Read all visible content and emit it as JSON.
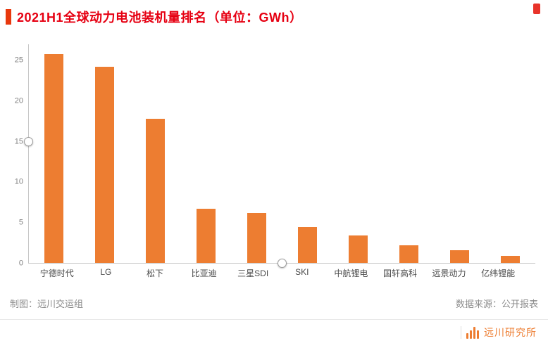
{
  "header": {
    "title": "2021H1全球动力电池装机量排名（单位：GWh）"
  },
  "chart_data": {
    "type": "bar",
    "title": "2021H1全球动力电池装机量排名（单位：GWh）",
    "categories": [
      "宁德时代",
      "LG",
      "松下",
      "比亚迪",
      "三星SDI",
      "SKI",
      "中航锂电",
      "国轩高科",
      "远景动力",
      "亿纬锂能"
    ],
    "values": [
      25.8,
      24.2,
      17.8,
      6.7,
      6.2,
      4.4,
      3.4,
      2.2,
      1.6,
      0.9
    ],
    "xlabel": "",
    "ylabel": "",
    "unit": "GWh",
    "ylim": [
      0,
      27
    ],
    "yticks": [
      0,
      5,
      10,
      15,
      20,
      25
    ],
    "grid": false,
    "legend": "none",
    "bar_color": "#ED7D31"
  },
  "footer": {
    "credit": "制图：远川交运组",
    "source": "数据来源：公开报表",
    "brand": "远川研究所"
  },
  "colors": {
    "accent": "#E8380D",
    "title_red": "#E60012",
    "bar_orange": "#ED7D31",
    "axis_gray": "#C6C6C6"
  }
}
